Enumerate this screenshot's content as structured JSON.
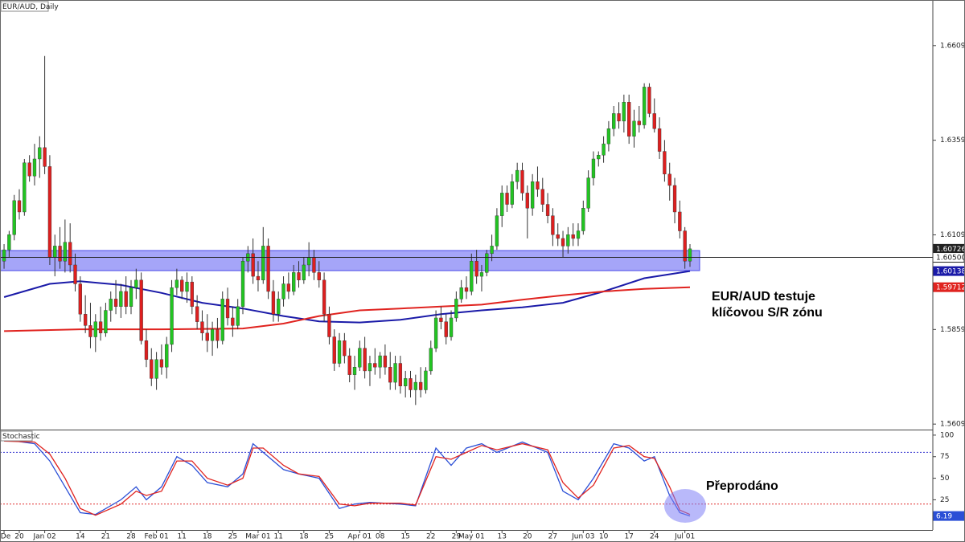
{
  "chart_data": [
    {
      "type": "candlestick",
      "title": "EUR/AUD, Daily",
      "candles": [
        [
          1.604,
          1.6085,
          1.602,
          1.607
        ],
        [
          1.607,
          1.612,
          1.605,
          1.611
        ],
        [
          1.611,
          1.6215,
          1.6095,
          1.62
        ],
        [
          1.62,
          1.623,
          1.615,
          1.617
        ],
        [
          1.617,
          1.631,
          1.616,
          1.63
        ],
        [
          1.63,
          1.632,
          1.625,
          1.6265
        ],
        [
          1.6265,
          1.635,
          1.624,
          1.631
        ],
        [
          1.631,
          1.637,
          1.626,
          1.634
        ],
        [
          1.634,
          1.6582,
          1.627,
          1.629
        ],
        [
          1.629,
          1.632,
          1.603,
          1.605
        ],
        [
          1.605,
          1.611,
          1.6,
          1.608
        ],
        [
          1.608,
          1.613,
          1.602,
          1.604
        ],
        [
          1.604,
          1.615,
          1.601,
          1.609
        ],
        [
          1.609,
          1.614,
          1.601,
          1.603
        ],
        [
          1.603,
          1.606,
          1.596,
          1.598
        ],
        [
          1.598,
          1.6,
          1.588,
          1.59
        ],
        [
          1.59,
          1.595,
          1.585,
          1.587
        ],
        [
          1.587,
          1.593,
          1.581,
          1.584
        ],
        [
          1.584,
          1.59,
          1.58,
          1.588
        ],
        [
          1.588,
          1.592,
          1.583,
          1.585
        ],
        [
          1.585,
          1.593,
          1.584,
          1.591
        ],
        [
          1.591,
          1.596,
          1.588,
          1.594
        ],
        [
          1.594,
          1.599,
          1.59,
          1.592
        ],
        [
          1.592,
          1.598,
          1.589,
          1.596
        ],
        [
          1.596,
          1.6,
          1.59,
          1.592
        ],
        [
          1.592,
          1.599,
          1.59,
          1.597
        ],
        [
          1.597,
          1.602,
          1.594,
          1.599
        ],
        [
          1.599,
          1.601,
          1.582,
          1.583
        ],
        [
          1.583,
          1.586,
          1.576,
          1.578
        ],
        [
          1.578,
          1.581,
          1.571,
          1.573
        ],
        [
          1.573,
          1.58,
          1.57,
          1.578
        ],
        [
          1.578,
          1.582,
          1.574,
          1.576
        ],
        [
          1.576,
          1.584,
          1.573,
          1.582
        ],
        [
          1.582,
          1.599,
          1.58,
          1.597
        ],
        [
          1.597,
          1.602,
          1.595,
          1.599
        ],
        [
          1.599,
          1.6,
          1.594,
          1.596
        ],
        [
          1.596,
          1.601,
          1.593,
          1.5985
        ],
        [
          1.5985,
          1.6,
          1.59,
          1.592
        ],
        [
          1.592,
          1.595,
          1.586,
          1.588
        ],
        [
          1.588,
          1.591,
          1.583,
          1.585
        ],
        [
          1.585,
          1.59,
          1.58,
          1.583
        ],
        [
          1.583,
          1.588,
          1.579,
          1.586
        ],
        [
          1.586,
          1.589,
          1.581,
          1.583
        ],
        [
          1.583,
          1.596,
          1.582,
          1.594
        ],
        [
          1.594,
          1.597,
          1.587,
          1.589
        ],
        [
          1.589,
          1.592,
          1.584,
          1.587
        ],
        [
          1.587,
          1.594,
          1.586,
          1.592
        ],
        [
          1.592,
          1.605,
          1.59,
          1.604
        ],
        [
          1.604,
          1.608,
          1.601,
          1.606
        ],
        [
          1.606,
          1.61,
          1.598,
          1.6
        ],
        [
          1.6,
          1.604,
          1.596,
          1.599
        ],
        [
          1.599,
          1.613,
          1.598,
          1.608
        ],
        [
          1.608,
          1.61,
          1.594,
          1.596
        ],
        [
          1.596,
          1.599,
          1.588,
          1.59
        ],
        [
          1.59,
          1.596,
          1.588,
          1.594
        ],
        [
          1.594,
          1.6,
          1.592,
          1.598
        ],
        [
          1.598,
          1.601,
          1.594,
          1.596
        ],
        [
          1.596,
          1.603,
          1.595,
          1.601
        ],
        [
          1.601,
          1.604,
          1.597,
          1.599
        ],
        [
          1.599,
          1.605,
          1.598,
          1.603
        ],
        [
          1.603,
          1.609,
          1.6,
          1.605
        ],
        [
          1.605,
          1.607,
          1.599,
          1.601
        ],
        [
          1.601,
          1.604,
          1.597,
          1.599
        ],
        [
          1.599,
          1.601,
          1.588,
          1.59
        ],
        [
          1.59,
          1.592,
          1.582,
          1.584
        ],
        [
          1.584,
          1.586,
          1.575,
          1.577
        ],
        [
          1.577,
          1.585,
          1.576,
          1.583
        ],
        [
          1.583,
          1.585,
          1.577,
          1.579
        ],
        [
          1.579,
          1.581,
          1.572,
          1.574
        ],
        [
          1.574,
          1.579,
          1.57,
          1.576
        ],
        [
          1.576,
          1.583,
          1.575,
          1.581
        ],
        [
          1.581,
          1.584,
          1.573,
          1.575
        ],
        [
          1.575,
          1.579,
          1.571,
          1.577
        ],
        [
          1.577,
          1.581,
          1.574,
          1.576
        ],
        [
          1.576,
          1.58,
          1.573,
          1.579
        ],
        [
          1.579,
          1.582,
          1.574,
          1.576
        ],
        [
          1.576,
          1.58,
          1.57,
          1.572
        ],
        [
          1.572,
          1.579,
          1.57,
          1.577
        ],
        [
          1.577,
          1.579,
          1.569,
          1.571
        ],
        [
          1.571,
          1.575,
          1.568,
          1.573
        ],
        [
          1.573,
          1.575,
          1.568,
          1.57
        ],
        [
          1.57,
          1.574,
          1.566,
          1.572
        ],
        [
          1.572,
          1.576,
          1.568,
          1.57
        ],
        [
          1.57,
          1.576,
          1.569,
          1.575
        ],
        [
          1.575,
          1.583,
          1.574,
          1.581
        ],
        [
          1.581,
          1.591,
          1.58,
          1.589
        ],
        [
          1.589,
          1.592,
          1.586,
          1.588
        ],
        [
          1.588,
          1.59,
          1.582,
          1.584
        ],
        [
          1.584,
          1.591,
          1.583,
          1.589
        ],
        [
          1.589,
          1.596,
          1.588,
          1.594
        ],
        [
          1.594,
          1.599,
          1.593,
          1.597
        ],
        [
          1.597,
          1.6,
          1.594,
          1.596
        ],
        [
          1.596,
          1.606,
          1.595,
          1.604
        ],
        [
          1.604,
          1.607,
          1.598,
          1.6
        ],
        [
          1.6,
          1.603,
          1.596,
          1.601
        ],
        [
          1.601,
          1.607,
          1.6,
          1.606
        ],
        [
          1.606,
          1.611,
          1.604,
          1.608
        ],
        [
          1.608,
          1.618,
          1.607,
          1.616
        ],
        [
          1.616,
          1.624,
          1.613,
          1.622
        ],
        [
          1.622,
          1.624,
          1.617,
          1.619
        ],
        [
          1.619,
          1.627,
          1.618,
          1.625
        ],
        [
          1.625,
          1.63,
          1.623,
          1.628
        ],
        [
          1.628,
          1.63,
          1.62,
          1.622
        ],
        [
          1.622,
          1.624,
          1.61,
          1.618
        ],
        [
          1.618,
          1.627,
          1.616,
          1.625
        ],
        [
          1.625,
          1.629,
          1.621,
          1.623
        ],
        [
          1.623,
          1.626,
          1.617,
          1.619
        ],
        [
          1.619,
          1.622,
          1.614,
          1.616
        ],
        [
          1.616,
          1.618,
          1.608,
          1.611
        ],
        [
          1.611,
          1.614,
          1.608,
          1.61
        ],
        [
          1.61,
          1.612,
          1.605,
          1.608
        ],
        [
          1.608,
          1.613,
          1.606,
          1.611
        ],
        [
          1.611,
          1.614,
          1.608,
          1.61
        ],
        [
          1.61,
          1.614,
          1.608,
          1.612
        ],
        [
          1.612,
          1.62,
          1.611,
          1.618
        ],
        [
          1.618,
          1.628,
          1.617,
          1.626
        ],
        [
          1.626,
          1.633,
          1.624,
          1.631
        ],
        [
          1.631,
          1.633,
          1.629,
          1.632
        ],
        [
          1.632,
          1.637,
          1.63,
          1.635
        ],
        [
          1.635,
          1.641,
          1.633,
          1.639
        ],
        [
          1.639,
          1.645,
          1.637,
          1.643
        ],
        [
          1.643,
          1.646,
          1.639,
          1.641
        ],
        [
          1.641,
          1.648,
          1.638,
          1.646
        ],
        [
          1.646,
          1.648,
          1.635,
          1.637
        ],
        [
          1.637,
          1.644,
          1.634,
          1.641
        ],
        [
          1.641,
          1.645,
          1.638,
          1.64
        ],
        [
          1.64,
          1.651,
          1.639,
          1.65
        ],
        [
          1.65,
          1.651,
          1.642,
          1.643
        ],
        [
          1.643,
          1.647,
          1.638,
          1.639
        ],
        [
          1.639,
          1.642,
          1.631,
          1.633
        ],
        [
          1.633,
          1.636,
          1.625,
          1.627
        ],
        [
          1.627,
          1.63,
          1.62,
          1.624
        ],
        [
          1.624,
          1.626,
          1.614,
          1.617
        ],
        [
          1.617,
          1.62,
          1.61,
          1.612
        ],
        [
          1.612,
          1.613,
          1.602,
          1.604
        ],
        [
          1.604,
          1.6085,
          1.6025,
          1.60726
        ]
      ],
      "up_color": "#22c422",
      "down_color": "#dd1f1f",
      "xlim": [
        -0.8,
        182.8
      ],
      "ylim": [
        1.5595,
        1.673
      ],
      "yticks": [
        1.56095,
        1.58595,
        1.61095,
        1.63595,
        1.66095
      ],
      "zone": [
        1.6015,
        1.6068
      ],
      "zone_color": "#7f7ff5",
      "price_line": {
        "value": 1.605,
        "label": "1.60500"
      },
      "last_price": 1.60726,
      "series": [
        {
          "color": "#1a1aa8",
          "x": [
            0,
            9,
            15,
            23,
            31,
            39,
            47,
            55,
            62,
            70,
            78,
            86,
            94,
            102,
            110,
            118,
            126,
            135
          ],
          "values": [
            1.5945,
            1.598,
            1.5987,
            1.5977,
            1.5956,
            1.593,
            1.5915,
            1.5895,
            1.5881,
            1.5878,
            1.5885,
            1.59,
            1.591,
            1.5918,
            1.593,
            1.596,
            1.5995,
            1.60138
          ],
          "last": 1.60138
        },
        {
          "color": "#e0231f",
          "x": [
            0,
            15,
            31,
            47,
            55,
            62,
            70,
            78,
            86,
            94,
            102,
            110,
            118,
            126,
            135
          ],
          "values": [
            1.5855,
            1.586,
            1.586,
            1.5862,
            1.5875,
            1.5895,
            1.591,
            1.5915,
            1.592,
            1.5925,
            1.5938,
            1.595,
            1.596,
            1.5967,
            1.59712
          ],
          "last": 1.59712
        }
      ],
      "annotations": [
        "EUR/AUD testuje",
        "klíčovou S/R zónu"
      ]
    },
    {
      "type": "line",
      "title": "Stochastic",
      "xlim": [
        -0.8,
        182.8
      ],
      "ylim": [
        -10,
        105.5
      ],
      "yticks": [
        25,
        50,
        75,
        100
      ],
      "levels": [
        {
          "value": 80,
          "color": "#3a3ad0"
        },
        {
          "value": 20,
          "color": "#e03030"
        }
      ],
      "series": [
        {
          "color": "#2b4fd6",
          "x": [
            0,
            6,
            9,
            12,
            15,
            18,
            23,
            26,
            28,
            31,
            34,
            37,
            40,
            44,
            47,
            49,
            51,
            55,
            58,
            62,
            66,
            69,
            72,
            78,
            81,
            85,
            88,
            91,
            94,
            97,
            102,
            107,
            110,
            113,
            116,
            120,
            123,
            126,
            128,
            131,
            133,
            135
          ],
          "values": [
            95,
            90,
            70,
            40,
            10,
            8,
            25,
            40,
            25,
            40,
            75,
            65,
            45,
            40,
            55,
            90,
            80,
            60,
            55,
            50,
            15,
            20,
            22,
            20,
            18,
            85,
            65,
            85,
            90,
            80,
            92,
            80,
            35,
            25,
            50,
            90,
            85,
            70,
            75,
            30,
            10,
            6.19
          ]
        },
        {
          "color": "#e0231f",
          "x": [
            0,
            6,
            9,
            12,
            15,
            18,
            23,
            26,
            28,
            31,
            34,
            37,
            40,
            44,
            47,
            49,
            51,
            55,
            58,
            62,
            66,
            69,
            72,
            78,
            81,
            85,
            88,
            91,
            94,
            97,
            102,
            107,
            110,
            113,
            116,
            120,
            123,
            126,
            128,
            131,
            133,
            135
          ],
          "values": [
            93,
            92,
            78,
            50,
            15,
            7,
            20,
            35,
            30,
            35,
            70,
            70,
            50,
            42,
            50,
            85,
            85,
            65,
            55,
            52,
            20,
            18,
            21,
            21,
            19,
            75,
            72,
            80,
            88,
            83,
            90,
            83,
            45,
            27,
            42,
            85,
            88,
            75,
            73,
            40,
            13,
            8
          ]
        }
      ],
      "last": 6.19,
      "xticks": [
        {
          "value": 0,
          "label": "De"
        },
        {
          "value": 3,
          "label": "20"
        },
        {
          "value": 8,
          "label": "Jan 02"
        },
        {
          "value": 15,
          "label": "14"
        },
        {
          "value": 20,
          "label": "21"
        },
        {
          "value": 25,
          "label": "28"
        },
        {
          "value": 30,
          "label": "Feb 01"
        },
        {
          "value": 35,
          "label": "11"
        },
        {
          "value": 40,
          "label": "18"
        },
        {
          "value": 45,
          "label": "25"
        },
        {
          "value": 50,
          "label": "Mar 01"
        },
        {
          "value": 54,
          "label": "11"
        },
        {
          "value": 59,
          "label": "18"
        },
        {
          "value": 64,
          "label": "25"
        },
        {
          "value": 70,
          "label": "Apr 01"
        },
        {
          "value": 74,
          "label": "08"
        },
        {
          "value": 79,
          "label": "15"
        },
        {
          "value": 84,
          "label": "22"
        },
        {
          "value": 89,
          "label": "29"
        },
        {
          "value": 92,
          "label": "May 01"
        },
        {
          "value": 98,
          "label": "13"
        },
        {
          "value": 103,
          "label": "20"
        },
        {
          "value": 108,
          "label": "27"
        },
        {
          "value": 114,
          "label": "Jun 03"
        },
        {
          "value": 118,
          "label": "10"
        },
        {
          "value": 123,
          "label": "17"
        },
        {
          "value": 128,
          "label": "24"
        },
        {
          "value": 134,
          "label": "Jul 01"
        }
      ],
      "annotations": [
        "Přeprodáno"
      ]
    }
  ]
}
